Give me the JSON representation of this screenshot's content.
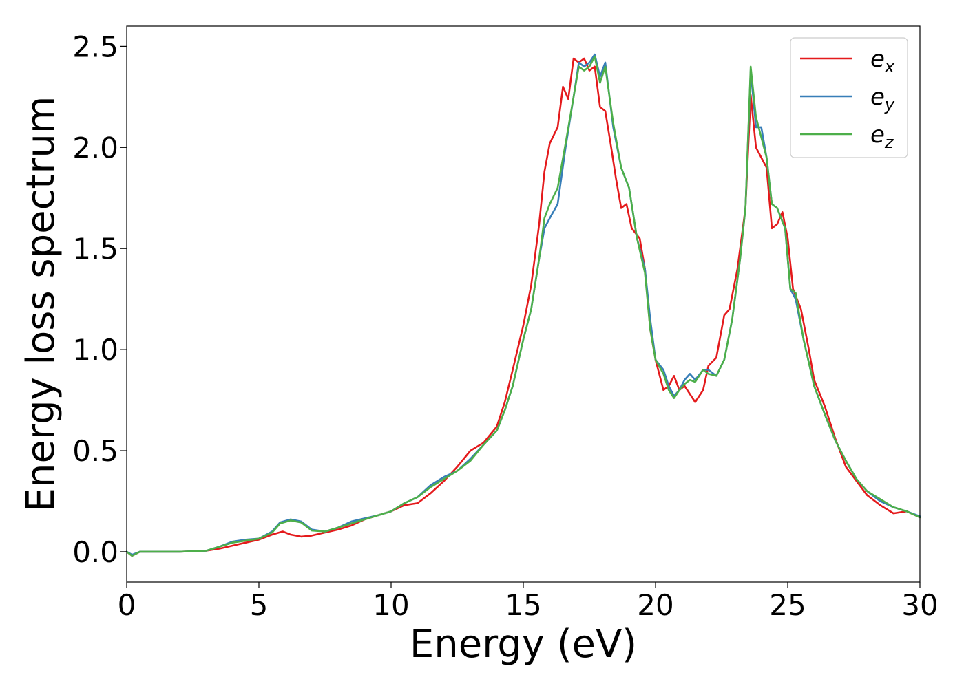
{
  "chart_data": {
    "type": "line",
    "xlabel": "Energy (eV)",
    "ylabel": "Energy loss spectrum",
    "xlim": [
      0,
      30
    ],
    "ylim": [
      -0.15,
      2.6
    ],
    "xticks": [
      0,
      5,
      10,
      15,
      20,
      25,
      30
    ],
    "xtick_labels": [
      "0",
      "5",
      "10",
      "15",
      "20",
      "25",
      "30"
    ],
    "yticks": [
      0.0,
      0.5,
      1.0,
      1.5,
      2.0,
      2.5
    ],
    "ytick_labels": [
      "0.0",
      "0.5",
      "1.0",
      "1.5",
      "2.0",
      "2.5"
    ],
    "grid": false,
    "legend_position": "top-right",
    "series": [
      {
        "name": "e_x",
        "legend_base": "e",
        "legend_sub": "x",
        "color": "#e41a1c",
        "points": [
          [
            0,
            0.0
          ],
          [
            0.2,
            -0.02
          ],
          [
            0.5,
            0.0
          ],
          [
            1,
            0.0
          ],
          [
            2,
            0.0
          ],
          [
            3,
            0.005
          ],
          [
            3.5,
            0.015
          ],
          [
            4,
            0.03
          ],
          [
            4.5,
            0.045
          ],
          [
            5,
            0.06
          ],
          [
            5.5,
            0.085
          ],
          [
            5.9,
            0.1
          ],
          [
            6.2,
            0.085
          ],
          [
            6.6,
            0.075
          ],
          [
            7,
            0.08
          ],
          [
            7.5,
            0.095
          ],
          [
            8,
            0.11
          ],
          [
            8.5,
            0.13
          ],
          [
            9,
            0.16
          ],
          [
            9.5,
            0.18
          ],
          [
            10,
            0.2
          ],
          [
            10.5,
            0.23
          ],
          [
            11,
            0.24
          ],
          [
            11.5,
            0.29
          ],
          [
            12,
            0.35
          ],
          [
            12.5,
            0.42
          ],
          [
            13,
            0.5
          ],
          [
            13.5,
            0.54
          ],
          [
            14,
            0.62
          ],
          [
            14.3,
            0.74
          ],
          [
            14.6,
            0.9
          ],
          [
            15,
            1.12
          ],
          [
            15.3,
            1.32
          ],
          [
            15.6,
            1.62
          ],
          [
            15.8,
            1.88
          ],
          [
            16,
            2.02
          ],
          [
            16.3,
            2.1
          ],
          [
            16.5,
            2.3
          ],
          [
            16.7,
            2.24
          ],
          [
            16.9,
            2.44
          ],
          [
            17.1,
            2.42
          ],
          [
            17.3,
            2.44
          ],
          [
            17.5,
            2.38
          ],
          [
            17.7,
            2.4
          ],
          [
            17.9,
            2.2
          ],
          [
            18.1,
            2.18
          ],
          [
            18.3,
            2.02
          ],
          [
            18.5,
            1.85
          ],
          [
            18.7,
            1.7
          ],
          [
            18.9,
            1.72
          ],
          [
            19.1,
            1.6
          ],
          [
            19.4,
            1.55
          ],
          [
            19.6,
            1.4
          ],
          [
            19.8,
            1.1
          ],
          [
            20,
            0.95
          ],
          [
            20.3,
            0.8
          ],
          [
            20.5,
            0.82
          ],
          [
            20.7,
            0.87
          ],
          [
            20.9,
            0.8
          ],
          [
            21.1,
            0.82
          ],
          [
            21.3,
            0.78
          ],
          [
            21.5,
            0.74
          ],
          [
            21.8,
            0.8
          ],
          [
            22,
            0.92
          ],
          [
            22.3,
            0.96
          ],
          [
            22.6,
            1.17
          ],
          [
            22.8,
            1.2
          ],
          [
            23.1,
            1.4
          ],
          [
            23.4,
            1.7
          ],
          [
            23.6,
            2.26
          ],
          [
            23.8,
            2.0
          ],
          [
            24,
            1.95
          ],
          [
            24.2,
            1.9
          ],
          [
            24.4,
            1.6
          ],
          [
            24.6,
            1.62
          ],
          [
            24.8,
            1.68
          ],
          [
            25,
            1.55
          ],
          [
            25.2,
            1.3
          ],
          [
            25.5,
            1.2
          ],
          [
            25.8,
            1.0
          ],
          [
            26,
            0.85
          ],
          [
            26.4,
            0.72
          ],
          [
            26.8,
            0.56
          ],
          [
            27.2,
            0.42
          ],
          [
            27.6,
            0.35
          ],
          [
            28,
            0.28
          ],
          [
            28.5,
            0.23
          ],
          [
            29,
            0.19
          ],
          [
            29.5,
            0.2
          ],
          [
            30,
            0.17
          ]
        ]
      },
      {
        "name": "e_y",
        "legend_base": "e",
        "legend_sub": "y",
        "color": "#377eb8",
        "points": [
          [
            0,
            0.0
          ],
          [
            0.2,
            -0.015
          ],
          [
            0.5,
            0.0
          ],
          [
            1,
            0.0
          ],
          [
            2,
            0.0
          ],
          [
            3,
            0.005
          ],
          [
            3.5,
            0.025
          ],
          [
            4,
            0.05
          ],
          [
            4.5,
            0.06
          ],
          [
            5,
            0.065
          ],
          [
            5.5,
            0.1
          ],
          [
            5.8,
            0.145
          ],
          [
            6.2,
            0.16
          ],
          [
            6.6,
            0.15
          ],
          [
            7,
            0.11
          ],
          [
            7.5,
            0.1
          ],
          [
            8,
            0.12
          ],
          [
            8.5,
            0.15
          ],
          [
            9,
            0.165
          ],
          [
            9.5,
            0.18
          ],
          [
            10,
            0.2
          ],
          [
            10.5,
            0.24
          ],
          [
            11,
            0.27
          ],
          [
            11.5,
            0.33
          ],
          [
            12,
            0.37
          ],
          [
            12.5,
            0.4
          ],
          [
            13,
            0.46
          ],
          [
            13.5,
            0.53
          ],
          [
            14,
            0.6
          ],
          [
            14.3,
            0.7
          ],
          [
            14.6,
            0.82
          ],
          [
            15,
            1.05
          ],
          [
            15.3,
            1.2
          ],
          [
            15.6,
            1.45
          ],
          [
            15.8,
            1.6
          ],
          [
            16,
            1.65
          ],
          [
            16.3,
            1.72
          ],
          [
            16.6,
            2.0
          ],
          [
            16.9,
            2.25
          ],
          [
            17.1,
            2.42
          ],
          [
            17.3,
            2.4
          ],
          [
            17.5,
            2.42
          ],
          [
            17.7,
            2.46
          ],
          [
            17.9,
            2.35
          ],
          [
            18.1,
            2.42
          ],
          [
            18.4,
            2.1
          ],
          [
            18.7,
            1.9
          ],
          [
            19,
            1.8
          ],
          [
            19.3,
            1.55
          ],
          [
            19.6,
            1.4
          ],
          [
            19.8,
            1.15
          ],
          [
            20,
            0.95
          ],
          [
            20.3,
            0.9
          ],
          [
            20.5,
            0.82
          ],
          [
            20.7,
            0.77
          ],
          [
            20.9,
            0.8
          ],
          [
            21.1,
            0.85
          ],
          [
            21.3,
            0.88
          ],
          [
            21.5,
            0.85
          ],
          [
            21.8,
            0.9
          ],
          [
            22,
            0.9
          ],
          [
            22.3,
            0.87
          ],
          [
            22.6,
            0.95
          ],
          [
            22.9,
            1.15
          ],
          [
            23.2,
            1.45
          ],
          [
            23.4,
            1.7
          ],
          [
            23.6,
            2.38
          ],
          [
            23.8,
            2.1
          ],
          [
            24,
            2.1
          ],
          [
            24.2,
            1.95
          ],
          [
            24.4,
            1.72
          ],
          [
            24.6,
            1.7
          ],
          [
            24.9,
            1.6
          ],
          [
            25.1,
            1.3
          ],
          [
            25.3,
            1.25
          ],
          [
            25.6,
            1.05
          ],
          [
            26,
            0.82
          ],
          [
            26.4,
            0.68
          ],
          [
            26.8,
            0.55
          ],
          [
            27.2,
            0.45
          ],
          [
            27.6,
            0.36
          ],
          [
            28,
            0.3
          ],
          [
            28.5,
            0.25
          ],
          [
            29,
            0.22
          ],
          [
            29.5,
            0.2
          ],
          [
            30,
            0.175
          ]
        ]
      },
      {
        "name": "e_z",
        "legend_base": "e",
        "legend_sub": "z",
        "color": "#4daf4a",
        "points": [
          [
            0,
            0.0
          ],
          [
            0.2,
            -0.02
          ],
          [
            0.5,
            0.0
          ],
          [
            1,
            0.0
          ],
          [
            2,
            0.0
          ],
          [
            3,
            0.005
          ],
          [
            3.5,
            0.025
          ],
          [
            4,
            0.045
          ],
          [
            4.5,
            0.055
          ],
          [
            5,
            0.065
          ],
          [
            5.5,
            0.095
          ],
          [
            5.8,
            0.14
          ],
          [
            6.2,
            0.155
          ],
          [
            6.6,
            0.145
          ],
          [
            7,
            0.105
          ],
          [
            7.5,
            0.1
          ],
          [
            8,
            0.12
          ],
          [
            8.5,
            0.14
          ],
          [
            9,
            0.16
          ],
          [
            9.5,
            0.18
          ],
          [
            10,
            0.2
          ],
          [
            10.5,
            0.24
          ],
          [
            11,
            0.27
          ],
          [
            11.5,
            0.32
          ],
          [
            12,
            0.36
          ],
          [
            12.5,
            0.4
          ],
          [
            13,
            0.45
          ],
          [
            13.5,
            0.53
          ],
          [
            14,
            0.6
          ],
          [
            14.3,
            0.7
          ],
          [
            14.6,
            0.82
          ],
          [
            15,
            1.05
          ],
          [
            15.3,
            1.2
          ],
          [
            15.6,
            1.45
          ],
          [
            15.8,
            1.65
          ],
          [
            16,
            1.72
          ],
          [
            16.3,
            1.8
          ],
          [
            16.6,
            2.02
          ],
          [
            16.9,
            2.25
          ],
          [
            17.1,
            2.4
          ],
          [
            17.3,
            2.38
          ],
          [
            17.5,
            2.4
          ],
          [
            17.7,
            2.45
          ],
          [
            17.9,
            2.32
          ],
          [
            18.1,
            2.4
          ],
          [
            18.4,
            2.12
          ],
          [
            18.7,
            1.9
          ],
          [
            19,
            1.8
          ],
          [
            19.3,
            1.55
          ],
          [
            19.6,
            1.38
          ],
          [
            19.8,
            1.1
          ],
          [
            20,
            0.95
          ],
          [
            20.3,
            0.88
          ],
          [
            20.5,
            0.8
          ],
          [
            20.7,
            0.76
          ],
          [
            20.9,
            0.8
          ],
          [
            21.1,
            0.83
          ],
          [
            21.3,
            0.85
          ],
          [
            21.5,
            0.84
          ],
          [
            21.8,
            0.9
          ],
          [
            22,
            0.88
          ],
          [
            22.3,
            0.87
          ],
          [
            22.6,
            0.95
          ],
          [
            22.9,
            1.15
          ],
          [
            23.2,
            1.45
          ],
          [
            23.4,
            1.7
          ],
          [
            23.6,
            2.4
          ],
          [
            23.8,
            2.15
          ],
          [
            24,
            2.05
          ],
          [
            24.2,
            1.95
          ],
          [
            24.4,
            1.72
          ],
          [
            24.6,
            1.7
          ],
          [
            24.9,
            1.6
          ],
          [
            25.1,
            1.3
          ],
          [
            25.3,
            1.28
          ],
          [
            25.6,
            1.05
          ],
          [
            26,
            0.82
          ],
          [
            26.4,
            0.68
          ],
          [
            26.8,
            0.55
          ],
          [
            27.2,
            0.45
          ],
          [
            27.6,
            0.36
          ],
          [
            28,
            0.3
          ],
          [
            28.5,
            0.26
          ],
          [
            29,
            0.22
          ],
          [
            29.5,
            0.2
          ],
          [
            30,
            0.17
          ]
        ]
      }
    ]
  }
}
